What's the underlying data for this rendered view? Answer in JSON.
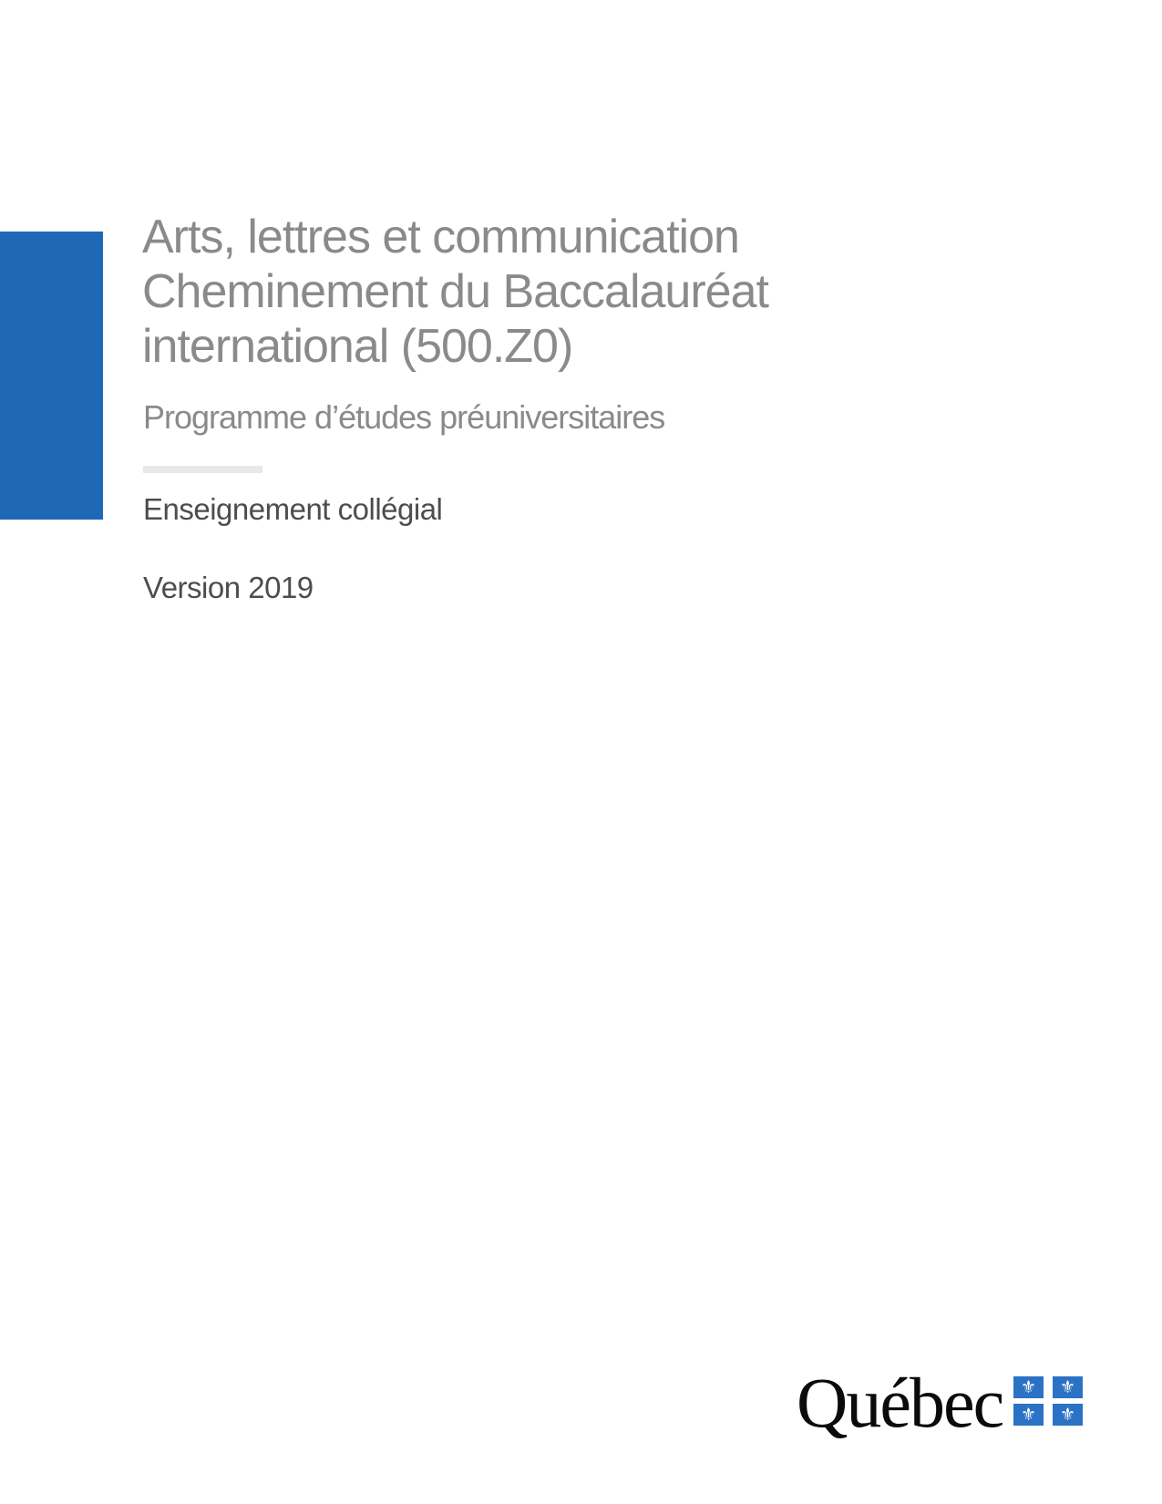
{
  "cover": {
    "title_lines": [
      "Arts, lettres et communication",
      "Cheminement du Baccalauréat",
      "international (500.Z0)"
    ],
    "subtitle": "Programme d’études préuniversitaires",
    "education_level": "Enseignement collégial",
    "version": "Version 2019"
  },
  "logo": {
    "wordmark": "Québec",
    "fleur_de_lis_glyph": "⚜"
  },
  "colors": {
    "accent_bar_blue": "#1E68B5",
    "flag_blue": "#2B72C5",
    "title_gray": "#8A8A8A",
    "label_dark_gray": "#4D4D4D",
    "divider_gray": "#E8E8E8",
    "wordmark_black": "#0B0B0B",
    "page_background": "#FFFFFF"
  }
}
